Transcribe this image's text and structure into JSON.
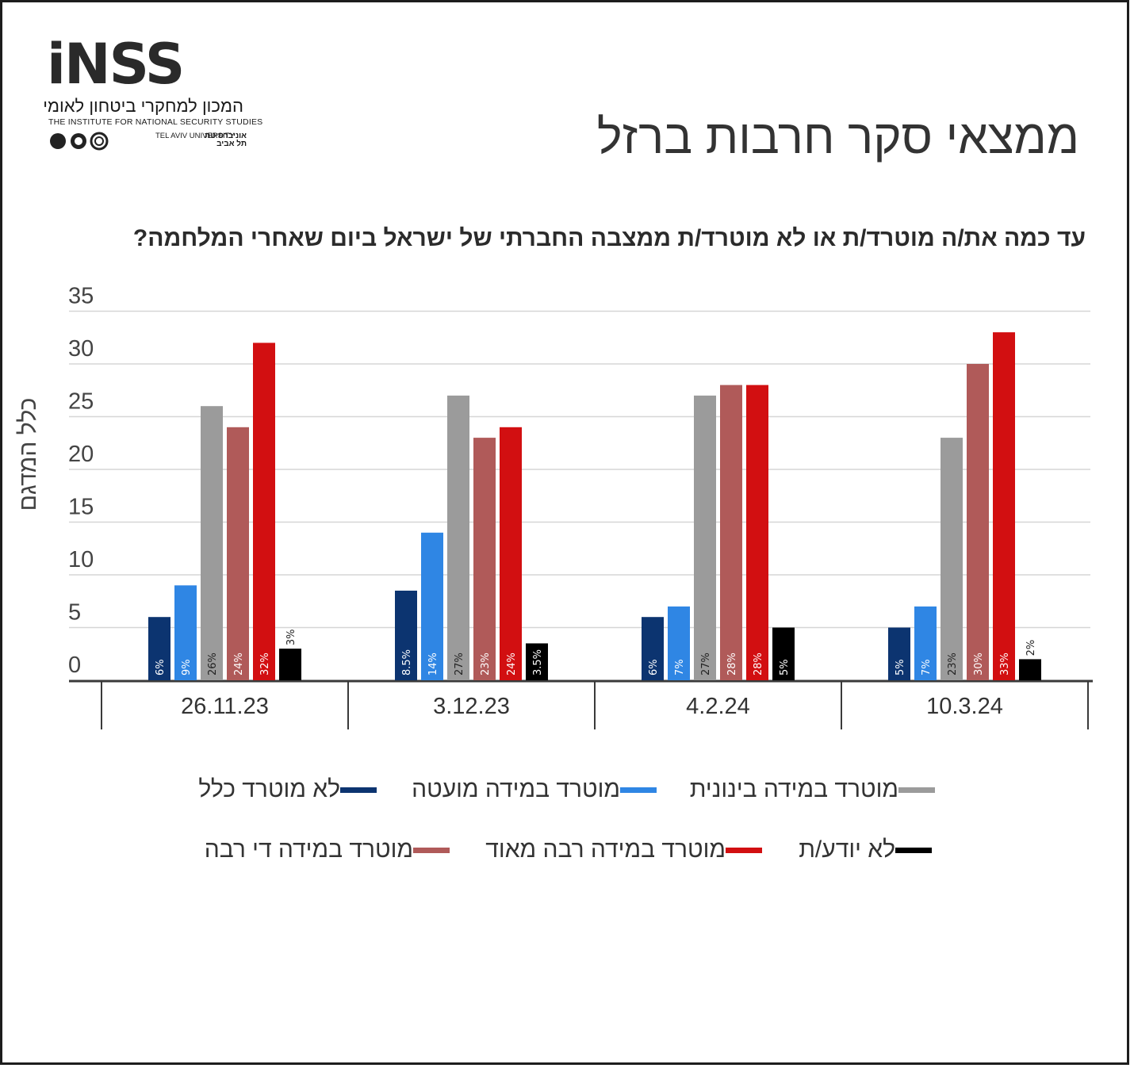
{
  "header": {
    "title": "ממצאי סקר חרבות ברזל",
    "logo": {
      "mark": "iNSS",
      "hebrew_name": "המכון למחקרי ביטחון לאומי",
      "english_name": "THE INSTITUTE FOR NATIONAL SECURITY STUDIES",
      "university_en": "TEL AVIV UNIVERSITY",
      "university_he": "אוניברסיטת תל אביב"
    }
  },
  "question": "עד כמה את/ה מוטרד/ת או לא מוטרד/ת ממצבה החברתי של ישראל ביום שאחרי המלחמה?",
  "chart_data": {
    "type": "bar",
    "ylabel": "כלל המדגם",
    "ylim": [
      0,
      35
    ],
    "yticks": [
      "0",
      "5",
      "10",
      "15",
      "20",
      "25",
      "30",
      "35"
    ],
    "grid": true,
    "legend_position": "bottom",
    "categories": [
      "26.11.23",
      "3.12.23",
      "4.2.24",
      "10.3.24"
    ],
    "series": [
      {
        "name": "לא מוטרד כלל",
        "color": "#0c3470",
        "values": [
          6,
          8.5,
          6,
          5
        ],
        "labels": [
          "6%",
          "8.5%",
          "6%",
          "5%"
        ]
      },
      {
        "name": "מוטרד במידה מועטה",
        "color": "#2f86e4",
        "values": [
          9,
          14,
          7,
          7
        ],
        "labels": [
          "9%",
          "14%",
          "7%",
          "7%"
        ]
      },
      {
        "name": "מוטרד במידה בינונית",
        "color": "#9b9b9b",
        "values": [
          26,
          27,
          27,
          23
        ],
        "labels": [
          "26%",
          "27%",
          "27%",
          "23%"
        ]
      },
      {
        "name": "מוטרד במידה די רבה",
        "color": "#b05a59",
        "values": [
          24,
          23,
          28,
          30
        ],
        "labels": [
          "24%",
          "23%",
          "28%",
          "30%"
        ]
      },
      {
        "name": "מוטרד במידה רבה מאוד",
        "color": "#d20f11",
        "values": [
          32,
          24,
          28,
          33
        ],
        "labels": [
          "32%",
          "24%",
          "28%",
          "33%"
        ]
      },
      {
        "name": "לא יודע/ת",
        "color": "#000000",
        "values": [
          3,
          3.5,
          5,
          2
        ],
        "labels": [
          "3%",
          "3.5%",
          "5%",
          "2%"
        ]
      }
    ]
  }
}
